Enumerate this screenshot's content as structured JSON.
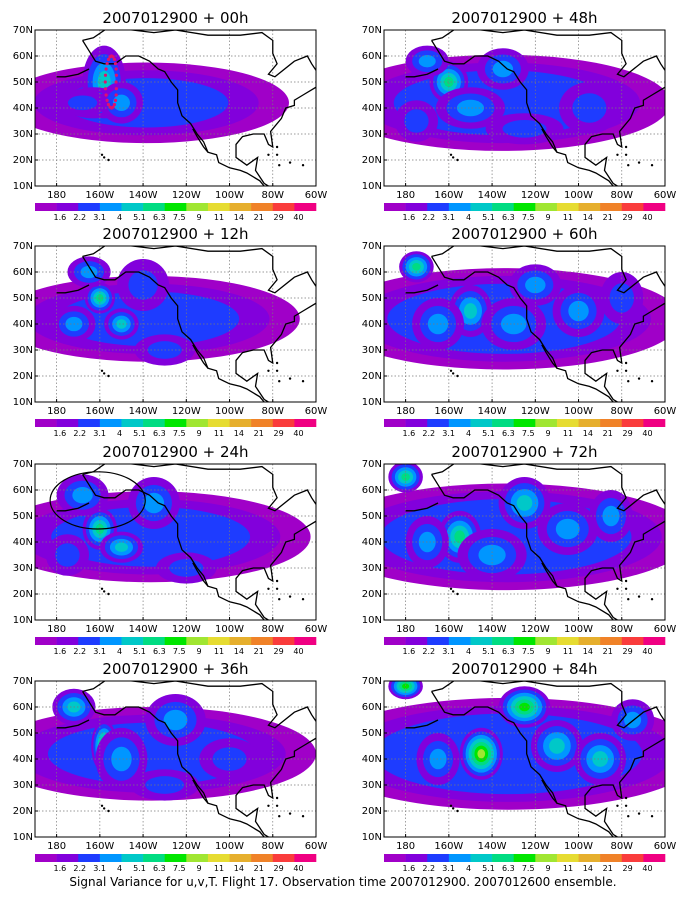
{
  "figure": {
    "caption": "Signal Variance for u,v,T. Flight 17. Observation time 2007012900. 2007012600 ensemble.",
    "colorbar": {
      "labels": [
        "1.6",
        "2.2",
        "3.1",
        "4",
        "5.1",
        "6.3",
        "7.5",
        "9",
        "11",
        "14",
        "21",
        "29",
        "40"
      ],
      "colors": [
        "#a000c8",
        "#8200dc",
        "#1e3cff",
        "#0096ff",
        "#00c8c8",
        "#00dc82",
        "#00e600",
        "#a0e632",
        "#e6dc32",
        "#e6af2d",
        "#f08228",
        "#fa3c3c",
        "#f00082"
      ]
    },
    "axes": {
      "lat_labels": [
        "70N",
        "60N",
        "50N",
        "40N",
        "30N",
        "20N",
        "10N"
      ],
      "lon_labels": [
        "180",
        "160W",
        "140W",
        "120W",
        "100W",
        "80W",
        "60W"
      ],
      "lat_values": [
        70,
        60,
        50,
        40,
        30,
        20,
        10
      ],
      "lon_values": [
        -180,
        -160,
        -140,
        -120,
        -100,
        -80,
        -60
      ]
    },
    "panels": [
      {
        "title": "2007012900 + 00h",
        "lead_h": 0,
        "level": 0.15,
        "markers": "dots",
        "blobs": [
          [
            -158,
            50,
            10,
            14,
            3
          ],
          [
            -163,
            42,
            14,
            6,
            2
          ],
          [
            -150,
            42,
            10,
            8,
            2
          ],
          [
            -168,
            42,
            12,
            5,
            1
          ]
        ]
      },
      {
        "title": "2007012900 + 48h",
        "lead_h": 48,
        "level": 0.45,
        "markers": "none",
        "blobs": [
          [
            -160,
            50,
            9,
            8,
            4
          ],
          [
            -170,
            58,
            10,
            6,
            2
          ],
          [
            -150,
            40,
            16,
            8,
            2
          ],
          [
            -135,
            55,
            12,
            8,
            2
          ],
          [
            -125,
            32,
            18,
            6,
            1
          ],
          [
            -95,
            40,
            14,
            10,
            1
          ],
          [
            -175,
            35,
            10,
            8,
            1
          ]
        ]
      },
      {
        "title": "2007012900 + 12h",
        "lead_h": 12,
        "level": 0.25,
        "markers": "none",
        "blobs": [
          [
            -160,
            50,
            7,
            6,
            4
          ],
          [
            -150,
            40,
            8,
            6,
            3
          ],
          [
            -172,
            40,
            10,
            7,
            2
          ],
          [
            -165,
            60,
            10,
            6,
            2
          ],
          [
            -140,
            55,
            12,
            10,
            1
          ],
          [
            -130,
            30,
            14,
            6,
            1
          ]
        ]
      },
      {
        "title": "2007012900 + 60h",
        "lead_h": 60,
        "level": 0.55,
        "markers": "none",
        "blobs": [
          [
            -175,
            62,
            8,
            6,
            4
          ],
          [
            -150,
            45,
            10,
            10,
            3
          ],
          [
            -120,
            55,
            12,
            8,
            2
          ],
          [
            -130,
            40,
            15,
            10,
            2
          ],
          [
            -100,
            45,
            12,
            10,
            2
          ],
          [
            -80,
            50,
            10,
            10,
            1
          ],
          [
            -165,
            40,
            12,
            10,
            2
          ]
        ]
      },
      {
        "title": "2007012900 + 24h",
        "lead_h": 24,
        "level": 0.35,
        "markers": "circle",
        "blobs": [
          [
            -160,
            45,
            8,
            8,
            4
          ],
          [
            -150,
            38,
            10,
            6,
            3
          ],
          [
            -168,
            58,
            12,
            8,
            2
          ],
          [
            -135,
            55,
            12,
            10,
            2
          ],
          [
            -120,
            30,
            14,
            6,
            1
          ],
          [
            -175,
            35,
            10,
            8,
            1
          ]
        ]
      },
      {
        "title": "2007012900 + 72h",
        "lead_h": 72,
        "level": 0.65,
        "markers": "none",
        "blobs": [
          [
            -180,
            65,
            8,
            6,
            4
          ],
          [
            -155,
            42,
            10,
            10,
            4
          ],
          [
            -125,
            55,
            12,
            10,
            3
          ],
          [
            -140,
            35,
            16,
            10,
            2
          ],
          [
            -105,
            45,
            14,
            10,
            2
          ],
          [
            -85,
            50,
            10,
            10,
            2
          ],
          [
            -170,
            40,
            10,
            10,
            2
          ]
        ]
      },
      {
        "title": "2007012900 + 36h",
        "lead_h": 36,
        "level": 0.4,
        "markers": "none",
        "blobs": [
          [
            -158,
            45,
            6,
            10,
            5
          ],
          [
            -172,
            60,
            10,
            7,
            3
          ],
          [
            -150,
            40,
            12,
            12,
            2
          ],
          [
            -125,
            55,
            14,
            10,
            2
          ],
          [
            -130,
            30,
            16,
            6,
            1
          ],
          [
            -100,
            40,
            14,
            8,
            1
          ]
        ]
      },
      {
        "title": "2007012900 + 84h",
        "lead_h": 84,
        "level": 0.75,
        "markers": "none",
        "blobs": [
          [
            -145,
            42,
            10,
            10,
            6
          ],
          [
            -180,
            68,
            8,
            5,
            5
          ],
          [
            -125,
            60,
            12,
            8,
            5
          ],
          [
            -110,
            45,
            12,
            10,
            3
          ],
          [
            -90,
            40,
            12,
            10,
            3
          ],
          [
            -165,
            40,
            10,
            10,
            2
          ],
          [
            -75,
            55,
            10,
            8,
            2
          ]
        ]
      }
    ]
  }
}
